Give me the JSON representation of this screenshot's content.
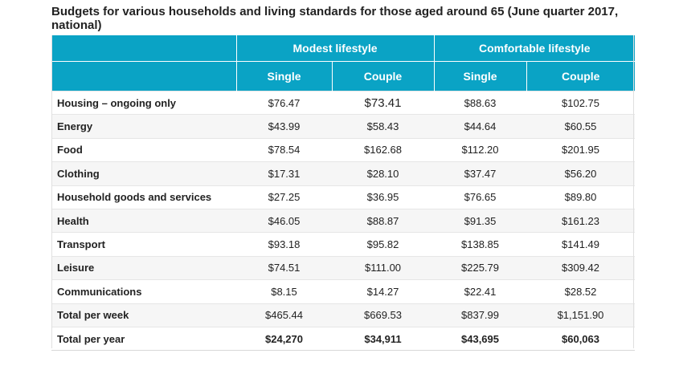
{
  "title": "Budgets for various households and living standards for those aged around 65 (June quarter 2017, national)",
  "groups": [
    "Modest lifestyle",
    "Comfortable lifestyle"
  ],
  "subheaders": [
    "Single",
    "Couple",
    "Single",
    "Couple"
  ],
  "rows": [
    {
      "label": "Housing – ongoing only",
      "values": [
        "$76.47",
        "$73.41",
        "$88.63",
        "$102.75"
      ]
    },
    {
      "label": "Energy",
      "values": [
        "$43.99",
        "$58.43",
        "$44.64",
        "$60.55"
      ]
    },
    {
      "label": "Food",
      "values": [
        "$78.54",
        "$162.68",
        "$112.20",
        "$201.95"
      ]
    },
    {
      "label": "Clothing",
      "values": [
        "$17.31",
        "$28.10",
        "$37.47",
        "$56.20"
      ]
    },
    {
      "label": "Household goods and services",
      "values": [
        "$27.25",
        "$36.95",
        "$76.65",
        "$89.80"
      ]
    },
    {
      "label": "Health",
      "values": [
        "$46.05",
        "$88.87",
        "$91.35",
        "$161.23"
      ]
    },
    {
      "label": "Transport",
      "values": [
        "$93.18",
        "$95.82",
        "$138.85",
        "$141.49"
      ]
    },
    {
      "label": "Leisure",
      "values": [
        "$74.51",
        "$111.00",
        "$225.79",
        "$309.42"
      ]
    },
    {
      "label": "Communications",
      "values": [
        "$8.15",
        "$14.27",
        "$22.41",
        "$28.52"
      ]
    },
    {
      "label": "Total per week",
      "values": [
        "$465.44",
        "$669.53",
        "$837.99",
        "$1,151.90"
      ]
    },
    {
      "label": "Total per year",
      "values": [
        "$24,270",
        "$34,911",
        "$43,695",
        "$60,063"
      ]
    }
  ],
  "colors": {
    "header_bg": "#0aa3c5",
    "header_text": "#ffffff",
    "stripe": "#f6f6f6"
  }
}
